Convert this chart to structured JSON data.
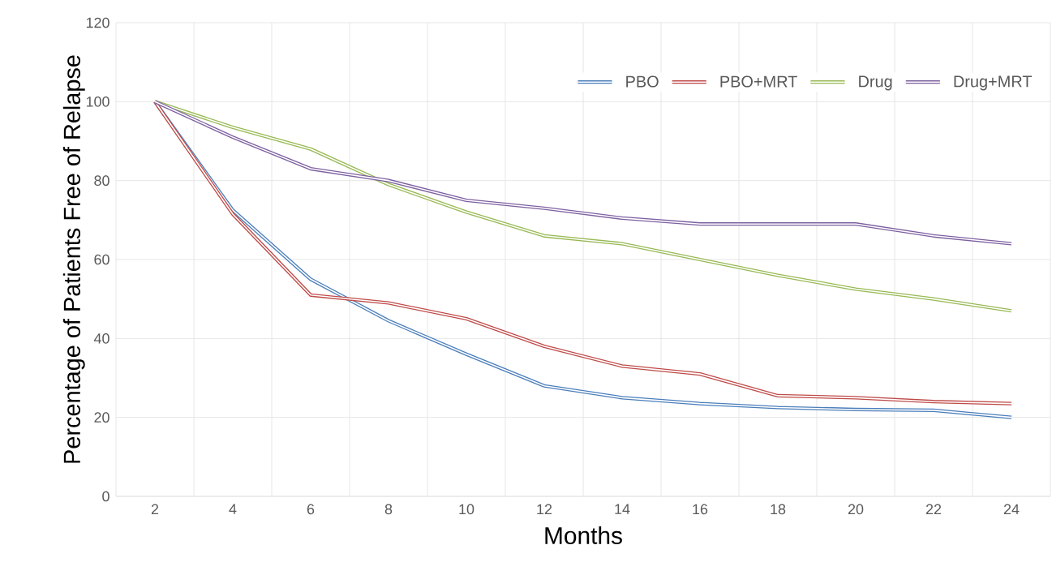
{
  "chart_data": {
    "type": "line",
    "xlabel": "Months",
    "ylabel": "Percentage of Patients Free of Relapse",
    "categories": [
      "2",
      "4",
      "6",
      "8",
      "10",
      "12",
      "14",
      "16",
      "18",
      "20",
      "22",
      "24"
    ],
    "series": [
      {
        "name": "PBO",
        "color": "#4a7ebb",
        "values": [
          100,
          72.5,
          55,
          44.5,
          36,
          28,
          25,
          23.5,
          22.5,
          22,
          21.8,
          20
        ]
      },
      {
        "name": "PBO+MRT",
        "color": "#be4b48",
        "values": [
          100,
          71.5,
          51,
          49,
          45,
          38,
          33,
          31,
          25.5,
          25,
          24,
          23.5
        ]
      },
      {
        "name": "Drug",
        "color": "#98b954",
        "values": [
          100,
          93.5,
          88,
          79,
          72,
          66,
          64,
          60,
          56,
          52.5,
          50,
          47
        ]
      },
      {
        "name": "Drug+MRT",
        "color": "#7d60a0",
        "values": [
          100,
          91,
          83,
          80,
          75,
          73,
          70.5,
          69,
          69,
          69,
          66,
          64
        ]
      }
    ],
    "ylim": [
      0,
      120
    ],
    "yticks": [
      0,
      20,
      40,
      60,
      80,
      100,
      120
    ],
    "grid": true,
    "legend": "top right",
    "marker": "none",
    "line_style": "solid"
  }
}
